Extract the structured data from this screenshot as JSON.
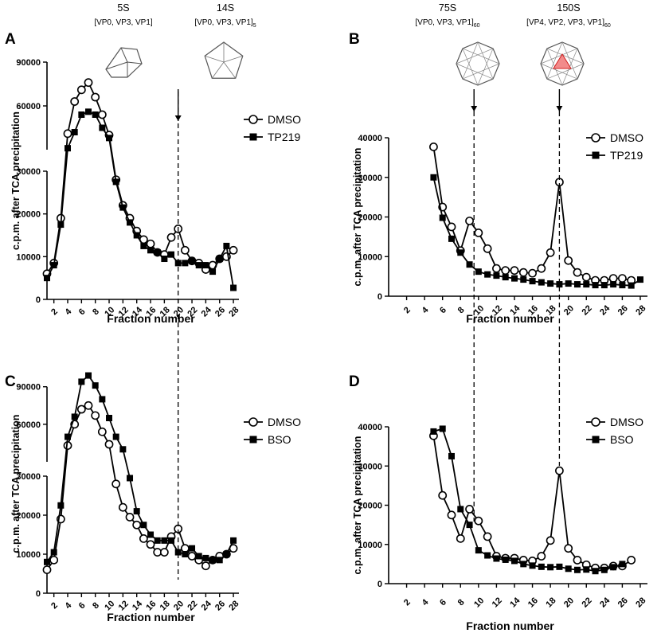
{
  "annotations": {
    "s5": {
      "label": "5S",
      "sub": "[VP0, VP3, VP1]"
    },
    "s14": {
      "label": "14S",
      "sub": "[VP0, VP3, VP1]",
      "subscript": "5"
    },
    "s75": {
      "label": "75S",
      "sub": "[VP0, VP3, VP1]",
      "subscript": "60"
    },
    "s150": {
      "label": "150S",
      "sub": "[VP4, VP2, VP3, VP1]",
      "subscript": "60"
    }
  },
  "chart_data": [
    {
      "panel": "A",
      "type": "line",
      "xlabel": "Fraction number",
      "ylabel": "c.p.m. after TCA precipitation",
      "axis_break": true,
      "y_lower_range": [
        0,
        30000
      ],
      "y_upper_range": [
        30000,
        90000
      ],
      "x_ticks": [
        "2",
        "4",
        "6",
        "8",
        "10",
        "12",
        "14",
        "16",
        "18",
        "20",
        "22",
        "24",
        "26",
        "28"
      ],
      "y_lower_ticks": [
        "0",
        "10000",
        "20000",
        "30000"
      ],
      "y_upper_ticks": [
        "60000",
        "90000"
      ],
      "legend_position": "right",
      "series": [
        {
          "name": "DMSO",
          "marker": "open-circle",
          "x": [
            1,
            2,
            3,
            4,
            5,
            6,
            7,
            8,
            9,
            10,
            11,
            12,
            13,
            14,
            15,
            16,
            17,
            18,
            19,
            20,
            21,
            22,
            23,
            24,
            25,
            26,
            27,
            28
          ],
          "y": [
            6000,
            8500,
            19000,
            41000,
            63000,
            71000,
            76000,
            66000,
            54000,
            40000,
            28000,
            22000,
            19000,
            16000,
            14000,
            13000,
            11000,
            10500,
            14500,
            16500,
            11500,
            9000,
            8500,
            7000,
            8000,
            9500,
            10000,
            11500
          ]
        },
        {
          "name": "TP219",
          "marker": "filled-square",
          "x": [
            1,
            2,
            3,
            4,
            5,
            6,
            7,
            8,
            9,
            10,
            11,
            12,
            13,
            14,
            15,
            16,
            17,
            18,
            19,
            20,
            21,
            22,
            23,
            24,
            25,
            26,
            27,
            28
          ],
          "y": [
            5000,
            8000,
            17500,
            31000,
            42000,
            54000,
            56000,
            54000,
            45000,
            38000,
            27500,
            21500,
            18000,
            15000,
            12500,
            11500,
            11000,
            9500,
            10500,
            8500,
            8500,
            9000,
            8000,
            8000,
            6500,
            9500,
            12500,
            2700
          ]
        }
      ]
    },
    {
      "panel": "B",
      "type": "line",
      "xlabel": "Fraction number",
      "ylabel": "c.p.m. after TCA precipitation",
      "axis_break": false,
      "y_range": [
        0,
        40000
      ],
      "x_ticks": [
        "2",
        "4",
        "6",
        "8",
        "10",
        "12",
        "14",
        "16",
        "18",
        "20",
        "22",
        "24",
        "26",
        "28"
      ],
      "y_ticks": [
        "0",
        "10000",
        "20000",
        "30000",
        "40000"
      ],
      "legend_position": "top-right",
      "series": [
        {
          "name": "DMSO",
          "marker": "open-circle",
          "x": [
            5,
            6,
            7,
            8,
            9,
            10,
            11,
            12,
            13,
            14,
            15,
            16,
            17,
            18,
            19,
            20,
            21,
            22,
            23,
            24,
            25,
            26,
            27
          ],
          "y": [
            37700,
            22500,
            17500,
            11500,
            19000,
            16000,
            12000,
            7000,
            6500,
            6500,
            6000,
            5800,
            7000,
            11000,
            28800,
            9000,
            6000,
            4800,
            4000,
            4000,
            4500,
            4500,
            4000
          ]
        },
        {
          "name": "TP219",
          "marker": "filled-square",
          "x": [
            5,
            6,
            7,
            8,
            9,
            10,
            11,
            12,
            13,
            14,
            15,
            16,
            17,
            18,
            19,
            20,
            21,
            22,
            23,
            24,
            25,
            26,
            27,
            28
          ],
          "y": [
            30000,
            19800,
            14500,
            11000,
            8000,
            6200,
            5500,
            5200,
            4800,
            4500,
            4200,
            3800,
            3500,
            3200,
            3000,
            3200,
            3000,
            3000,
            2800,
            2800,
            3000,
            2800,
            2700,
            4200
          ]
        }
      ]
    },
    {
      "panel": "C",
      "type": "line",
      "xlabel": "Fraction number",
      "ylabel": "c.p.m. after TCA precipitation",
      "axis_break": true,
      "y_lower_range": [
        0,
        30000
      ],
      "y_upper_range": [
        30000,
        100000
      ],
      "x_ticks": [
        "2",
        "4",
        "6",
        "8",
        "10",
        "12",
        "14",
        "16",
        "18",
        "20",
        "22",
        "24",
        "26",
        "28"
      ],
      "y_lower_ticks": [
        "0",
        "10000",
        "20000",
        "30000"
      ],
      "y_upper_ticks": [
        "60000",
        "90000"
      ],
      "legend_position": "right",
      "series": [
        {
          "name": "DMSO",
          "marker": "open-circle",
          "x": [
            1,
            2,
            3,
            4,
            5,
            6,
            7,
            8,
            9,
            10,
            11,
            12,
            13,
            14,
            15,
            16,
            17,
            18,
            19,
            20,
            21,
            22,
            23,
            24,
            25,
            26,
            27,
            28
          ],
          "y": [
            6000,
            8500,
            19000,
            43000,
            60000,
            72000,
            75000,
            67000,
            54000,
            44000,
            28000,
            22000,
            19500,
            17500,
            14000,
            12500,
            10500,
            10500,
            14500,
            16500,
            11500,
            9500,
            8500,
            7000,
            8500,
            9500,
            10000,
            11500
          ]
        },
        {
          "name": "BSO",
          "marker": "filled-square",
          "x": [
            1,
            2,
            3,
            4,
            5,
            6,
            7,
            8,
            9,
            10,
            11,
            12,
            13,
            14,
            15,
            16,
            17,
            18,
            19,
            20,
            21,
            22,
            23,
            24,
            25,
            26,
            27,
            28
          ],
          "y": [
            8000,
            10500,
            22500,
            50000,
            66000,
            94000,
            99000,
            91000,
            80000,
            65000,
            50000,
            40000,
            29500,
            21000,
            17500,
            15000,
            13500,
            13500,
            13500,
            10500,
            10000,
            11500,
            9500,
            9000,
            8500,
            8500,
            10000,
            13500
          ]
        }
      ]
    },
    {
      "panel": "D",
      "type": "line",
      "xlabel": "Fraction number",
      "ylabel": "c.p.m. after TCA precipitation",
      "axis_break": false,
      "y_range": [
        0,
        40000
      ],
      "x_ticks": [
        "2",
        "4",
        "6",
        "8",
        "10",
        "12",
        "14",
        "16",
        "18",
        "20",
        "22",
        "24",
        "26",
        "28"
      ],
      "y_ticks": [
        "0",
        "10000",
        "20000",
        "30000",
        "40000"
      ],
      "legend_position": "top-right",
      "series": [
        {
          "name": "DMSO",
          "marker": "open-circle",
          "x": [
            5,
            6,
            7,
            8,
            9,
            10,
            11,
            12,
            13,
            14,
            15,
            16,
            17,
            18,
            19,
            20,
            21,
            22,
            23,
            24,
            25,
            26,
            27
          ],
          "y": [
            37700,
            22500,
            17500,
            11500,
            19000,
            16000,
            12000,
            7000,
            6500,
            6500,
            6000,
            5800,
            7000,
            11000,
            28800,
            9000,
            6000,
            4800,
            4000,
            4000,
            4500,
            4500,
            6000
          ]
        },
        {
          "name": "BSO",
          "marker": "filled-square",
          "x": [
            5,
            6,
            7,
            8,
            9,
            10,
            11,
            12,
            13,
            14,
            15,
            16,
            17,
            18,
            19,
            20,
            21,
            22,
            23,
            24,
            25,
            26
          ],
          "y": [
            38800,
            39500,
            32500,
            19000,
            15000,
            8500,
            7200,
            6400,
            6100,
            5800,
            5000,
            4600,
            4300,
            4200,
            4300,
            3800,
            3500,
            3600,
            3200,
            3500,
            4200,
            5000
          ]
        }
      ]
    }
  ]
}
